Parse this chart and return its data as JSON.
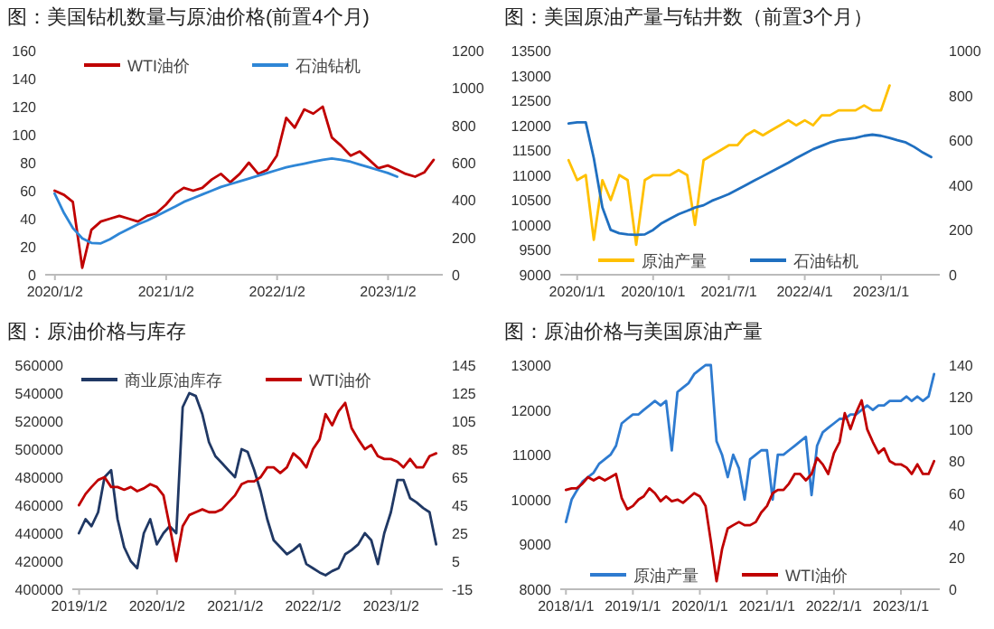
{
  "chart_data": [
    {
      "type": "line",
      "title": "图：美国钻机数量与原油价格(前置4个月)",
      "legend": "top",
      "xlim": [
        "2019-12",
        "2023-07"
      ],
      "xticks": [
        {
          "value": "2020-01-02",
          "label": "2020/1/2"
        },
        {
          "value": "2021-01-02",
          "label": "2021/1/2"
        },
        {
          "value": "2022-01-02",
          "label": "2022/1/2"
        },
        {
          "value": "2023-01-02",
          "label": "2023/1/2"
        }
      ],
      "ylim": [
        0,
        160
      ],
      "yticks": [
        0,
        20,
        40,
        60,
        80,
        100,
        120,
        140,
        160
      ],
      "y2lim": [
        0,
        1200
      ],
      "y2ticks": [
        0,
        200,
        400,
        600,
        800,
        1000,
        1200
      ],
      "x": [
        "2020-01",
        "2020-02",
        "2020-03",
        "2020-04",
        "2020-05",
        "2020-06",
        "2020-07",
        "2020-08",
        "2020-09",
        "2020-10",
        "2020-11",
        "2020-12",
        "2021-01",
        "2021-02",
        "2021-03",
        "2021-04",
        "2021-05",
        "2021-06",
        "2021-07",
        "2021-08",
        "2021-09",
        "2021-10",
        "2021-11",
        "2021-12",
        "2022-01",
        "2022-02",
        "2022-03",
        "2022-04",
        "2022-05",
        "2022-06",
        "2022-07",
        "2022-08",
        "2022-09",
        "2022-10",
        "2022-11",
        "2022-12",
        "2023-01",
        "2023-02",
        "2023-03",
        "2023-04",
        "2023-05",
        "2023-06"
      ],
      "series": [
        {
          "name": "WTI油价",
          "color": "#c00000",
          "values": [
            60,
            57,
            52,
            5,
            32,
            38,
            40,
            42,
            40,
            38,
            42,
            44,
            50,
            58,
            62,
            60,
            62,
            68,
            72,
            66,
            72,
            80,
            72,
            75,
            85,
            112,
            105,
            118,
            115,
            120,
            98,
            92,
            85,
            88,
            82,
            76,
            78,
            75,
            72,
            70,
            73,
            82
          ]
        },
        {
          "name": "石油钻机",
          "color": "#2e86d6",
          "axis": "y2",
          "values": [
            435,
            330,
            250,
            195,
            170,
            168,
            190,
            220,
            245,
            270,
            290,
            315,
            340,
            365,
            390,
            410,
            430,
            450,
            470,
            485,
            500,
            515,
            530,
            545,
            560,
            575,
            585,
            595,
            605,
            615,
            622,
            615,
            605,
            590,
            575,
            560,
            545,
            525,
            null,
            null,
            null,
            null
          ]
        }
      ]
    },
    {
      "type": "line",
      "title": "图：美国原油产量与钻井数（前置3个月）",
      "legend": "bottom",
      "xlim": [
        "2019-11",
        "2023-08"
      ],
      "xticks": [
        {
          "value": "2020-01-01",
          "label": "2020/1/1"
        },
        {
          "value": "2020-10-01",
          "label": "2020/10/1"
        },
        {
          "value": "2021-07-01",
          "label": "2021/7/1"
        },
        {
          "value": "2022-04-01",
          "label": "2022/4/1"
        },
        {
          "value": "2023-01-01",
          "label": "2023/1/1"
        }
      ],
      "ylim": [
        9000,
        13500
      ],
      "yticks": [
        9000,
        9500,
        10000,
        10500,
        11000,
        11500,
        12000,
        12500,
        13000,
        13500
      ],
      "y2lim": [
        0,
        1000
      ],
      "y2ticks": [
        0,
        200,
        400,
        600,
        800,
        1000
      ],
      "x": [
        "2019-12",
        "2020-01",
        "2020-02",
        "2020-03",
        "2020-04",
        "2020-05",
        "2020-06",
        "2020-07",
        "2020-08",
        "2020-09",
        "2020-10",
        "2020-11",
        "2020-12",
        "2021-01",
        "2021-02",
        "2021-03",
        "2021-04",
        "2021-05",
        "2021-06",
        "2021-07",
        "2021-08",
        "2021-09",
        "2021-10",
        "2021-11",
        "2021-12",
        "2022-01",
        "2022-02",
        "2022-03",
        "2022-04",
        "2022-05",
        "2022-06",
        "2022-07",
        "2022-08",
        "2022-09",
        "2022-10",
        "2022-11",
        "2022-12",
        "2023-01",
        "2023-02",
        "2023-03",
        "2023-04",
        "2023-05",
        "2023-06",
        "2023-07"
      ],
      "series": [
        {
          "name": "原油产量",
          "color": "#ffc000",
          "values": [
            11300,
            10900,
            11000,
            9700,
            10900,
            10500,
            11000,
            10900,
            9600,
            10900,
            11000,
            11000,
            11000,
            11100,
            11000,
            10000,
            11300,
            11400,
            11500,
            11600,
            11600,
            11800,
            11900,
            11800,
            11900,
            12000,
            12100,
            12000,
            12100,
            12000,
            12200,
            12200,
            12300,
            12300,
            12300,
            12400,
            12300,
            12300,
            12800,
            null,
            null,
            null,
            null,
            null
          ]
        },
        {
          "name": "石油钻机",
          "color": "#1f6fc0",
          "axis": "y2",
          "values": [
            675,
            680,
            680,
            520,
            300,
            200,
            185,
            180,
            178,
            180,
            200,
            230,
            250,
            270,
            285,
            300,
            310,
            330,
            345,
            360,
            380,
            400,
            420,
            440,
            460,
            480,
            500,
            520,
            540,
            560,
            575,
            590,
            600,
            605,
            610,
            620,
            625,
            620,
            610,
            600,
            590,
            570,
            545,
            525
          ]
        }
      ]
    },
    {
      "type": "line",
      "title": "图：原油价格与库存",
      "legend": "top",
      "xlim": [
        "2018-12",
        "2023-09"
      ],
      "xticks": [
        {
          "value": "2019-01-02",
          "label": "2019/1/2"
        },
        {
          "value": "2020-01-02",
          "label": "2020/1/2"
        },
        {
          "value": "2021-01-02",
          "label": "2021/1/2"
        },
        {
          "value": "2022-01-02",
          "label": "2022/1/2"
        },
        {
          "value": "2023-01-02",
          "label": "2023/1/2"
        }
      ],
      "ylim": [
        400000,
        560000
      ],
      "yticks": [
        400000,
        420000,
        440000,
        460000,
        480000,
        500000,
        520000,
        540000,
        560000
      ],
      "y2lim": [
        -15,
        145
      ],
      "y2ticks": [
        -15,
        5,
        25,
        45,
        65,
        85,
        105,
        125,
        145
      ],
      "x": [
        "2019-01",
        "2019-02",
        "2019-03",
        "2019-04",
        "2019-05",
        "2019-06",
        "2019-07",
        "2019-08",
        "2019-09",
        "2019-10",
        "2019-11",
        "2019-12",
        "2020-01",
        "2020-02",
        "2020-03",
        "2020-04",
        "2020-05",
        "2020-06",
        "2020-07",
        "2020-08",
        "2020-09",
        "2020-10",
        "2020-11",
        "2020-12",
        "2021-01",
        "2021-02",
        "2021-03",
        "2021-04",
        "2021-05",
        "2021-06",
        "2021-07",
        "2021-08",
        "2021-09",
        "2021-10",
        "2021-11",
        "2021-12",
        "2022-01",
        "2022-02",
        "2022-03",
        "2022-04",
        "2022-05",
        "2022-06",
        "2022-07",
        "2022-08",
        "2022-09",
        "2022-10",
        "2022-11",
        "2022-12",
        "2023-01",
        "2023-02",
        "2023-03",
        "2023-04",
        "2023-05",
        "2023-06",
        "2023-07",
        "2023-08"
      ],
      "series": [
        {
          "name": "商业原油库存",
          "color": "#203864",
          "values": [
            440000,
            450000,
            445000,
            455000,
            480000,
            485000,
            450000,
            430000,
            420000,
            415000,
            440000,
            450000,
            432000,
            440000,
            445000,
            440000,
            530000,
            540000,
            538000,
            525000,
            505000,
            495000,
            490000,
            485000,
            480000,
            500000,
            498000,
            485000,
            470000,
            450000,
            435000,
            430000,
            425000,
            428000,
            432000,
            418000,
            415000,
            412000,
            410000,
            413000,
            415000,
            425000,
            428000,
            432000,
            440000,
            435000,
            418000,
            440000,
            455000,
            478000,
            478000,
            465000,
            462000,
            458000,
            455000,
            432000
          ]
        },
        {
          "name": "WTI油价",
          "color": "#c00000",
          "axis": "y2",
          "values": [
            45,
            53,
            58,
            63,
            65,
            58,
            58,
            56,
            58,
            55,
            57,
            60,
            58,
            52,
            30,
            5,
            30,
            38,
            40,
            42,
            40,
            40,
            42,
            47,
            52,
            60,
            62,
            62,
            65,
            72,
            72,
            68,
            72,
            82,
            78,
            72,
            85,
            92,
            110,
            102,
            112,
            118,
            100,
            92,
            85,
            88,
            80,
            78,
            78,
            76,
            72,
            78,
            72,
            72,
            80,
            82
          ]
        }
      ]
    },
    {
      "type": "line",
      "title": "图：原油价格与美国原油产量",
      "legend": "bottom",
      "xlim": [
        "2017-12",
        "2023-08"
      ],
      "xticks": [
        {
          "value": "2018-01-01",
          "label": "2018/1/1"
        },
        {
          "value": "2019-01-01",
          "label": "2019/1/1"
        },
        {
          "value": "2020-01-01",
          "label": "2020/1/1"
        },
        {
          "value": "2021-01-01",
          "label": "2021/1/1"
        },
        {
          "value": "2022-01-01",
          "label": "2022/1/1"
        },
        {
          "value": "2023-01-01",
          "label": "2023/1/1"
        }
      ],
      "ylim": [
        8000,
        13000
      ],
      "yticks": [
        8000,
        9000,
        10000,
        11000,
        12000,
        13000
      ],
      "y2lim": [
        0,
        140
      ],
      "y2ticks": [
        0,
        20,
        40,
        60,
        80,
        100,
        120,
        140
      ],
      "x": [
        "2018-01",
        "2018-02",
        "2018-03",
        "2018-04",
        "2018-05",
        "2018-06",
        "2018-07",
        "2018-08",
        "2018-09",
        "2018-10",
        "2018-11",
        "2018-12",
        "2019-01",
        "2019-02",
        "2019-03",
        "2019-04",
        "2019-05",
        "2019-06",
        "2019-07",
        "2019-08",
        "2019-09",
        "2019-10",
        "2019-11",
        "2019-12",
        "2020-01",
        "2020-02",
        "2020-03",
        "2020-04",
        "2020-05",
        "2020-06",
        "2020-07",
        "2020-08",
        "2020-09",
        "2020-10",
        "2020-11",
        "2020-12",
        "2021-01",
        "2021-02",
        "2021-03",
        "2021-04",
        "2021-05",
        "2021-06",
        "2021-07",
        "2021-08",
        "2021-09",
        "2021-10",
        "2021-11",
        "2021-12",
        "2022-01",
        "2022-02",
        "2022-03",
        "2022-04",
        "2022-05",
        "2022-06",
        "2022-07",
        "2022-08",
        "2022-09",
        "2022-10",
        "2022-11",
        "2022-12",
        "2023-01",
        "2023-02",
        "2023-03",
        "2023-04",
        "2023-05",
        "2023-06",
        "2023-07"
      ],
      "series": [
        {
          "name": "原油产量",
          "color": "#2e7bd0",
          "values": [
            9500,
            10000,
            10200,
            10400,
            10500,
            10600,
            10800,
            10900,
            11000,
            11200,
            11700,
            11800,
            11900,
            11900,
            12000,
            12100,
            12200,
            12100,
            12200,
            11100,
            12400,
            12500,
            12600,
            12800,
            12900,
            13000,
            13000,
            11300,
            11000,
            10500,
            11000,
            10700,
            10000,
            10900,
            11000,
            11100,
            11100,
            10000,
            11000,
            11000,
            11100,
            11200,
            11300,
            11400,
            10100,
            11200,
            11500,
            11600,
            11700,
            11800,
            11800,
            11900,
            11900,
            12000,
            12100,
            12000,
            12100,
            12100,
            12200,
            12200,
            12200,
            12300,
            12200,
            12300,
            12200,
            12300,
            12800
          ]
        },
        {
          "name": "WTI油价",
          "color": "#c00000",
          "axis": "y2",
          "values": [
            62,
            63,
            63,
            66,
            70,
            68,
            70,
            68,
            70,
            72,
            57,
            50,
            52,
            56,
            58,
            63,
            60,
            55,
            58,
            55,
            56,
            54,
            57,
            60,
            58,
            52,
            30,
            5,
            25,
            38,
            40,
            42,
            40,
            40,
            42,
            48,
            52,
            60,
            62,
            62,
            66,
            72,
            72,
            68,
            72,
            82,
            78,
            72,
            85,
            92,
            110,
            100,
            110,
            118,
            100,
            92,
            85,
            88,
            80,
            78,
            78,
            76,
            72,
            78,
            72,
            72,
            80
          ]
        }
      ]
    }
  ]
}
